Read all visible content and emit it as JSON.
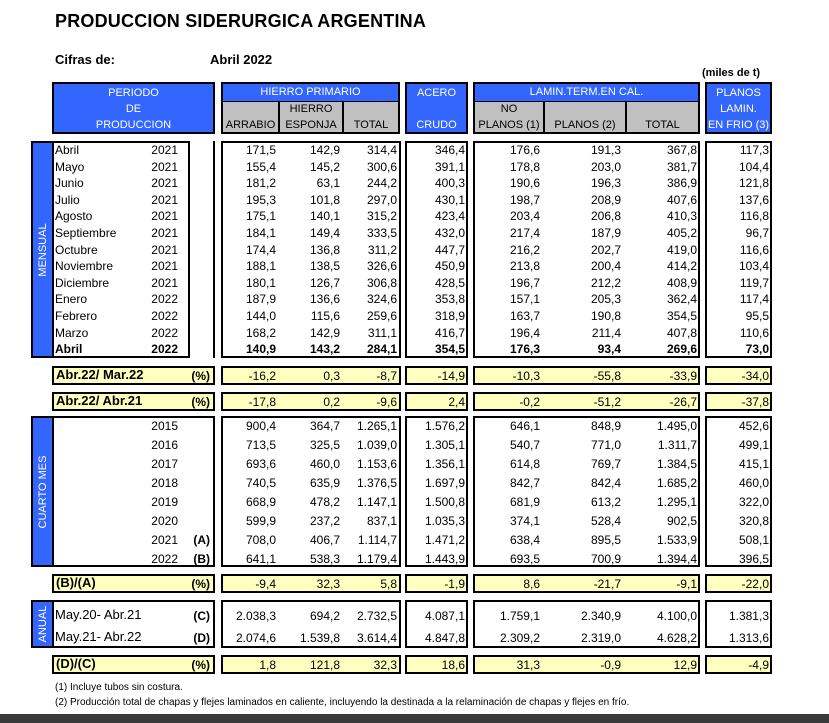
{
  "header": {
    "title": "PRODUCCION SIDERURGICA ARGENTINA",
    "cifras_label": "Cifras de:",
    "cifras_value": "Abril 2022",
    "units": "(miles de t)"
  },
  "columns": {
    "periodo": [
      "PERIODO",
      "DE",
      "PRODUCCION"
    ],
    "hierro_primario": "HIERRO PRIMARIO",
    "arrabio": "ARRABIO",
    "hierro_esponja": [
      "HIERRO",
      "ESPONJA"
    ],
    "hierro_total": "TOTAL",
    "acero": [
      "ACERO",
      "CRUDO"
    ],
    "lamin": "LAMIN.TERM.EN CAL.",
    "no_planos": [
      "NO",
      "PLANOS (1)"
    ],
    "planos": "PLANOS (2)",
    "lamin_total": "TOTAL",
    "planos_frio": [
      "PLANOS",
      "LAMIN.",
      "EN FRIO (3)"
    ]
  },
  "mensual": {
    "side_label": "MENSUAL",
    "rows": [
      {
        "month": "Abril",
        "year": "2021",
        "values": [
          "171,5",
          "142,9",
          "314,4",
          "346,4",
          "176,6",
          "191,3",
          "367,8",
          "117,3"
        ]
      },
      {
        "month": "Mayo",
        "year": "2021",
        "values": [
          "155,4",
          "145,2",
          "300,6",
          "391,1",
          "178,8",
          "203,0",
          "381,7",
          "104,4"
        ]
      },
      {
        "month": "Junio",
        "year": "2021",
        "values": [
          "181,2",
          "63,1",
          "244,2",
          "400,3",
          "190,6",
          "196,3",
          "386,9",
          "121,8"
        ]
      },
      {
        "month": "Julio",
        "year": "2021",
        "values": [
          "195,3",
          "101,8",
          "297,0",
          "430,1",
          "198,7",
          "208,9",
          "407,6",
          "137,6"
        ]
      },
      {
        "month": "Agosto",
        "year": "2021",
        "values": [
          "175,1",
          "140,1",
          "315,2",
          "423,4",
          "203,4",
          "206,8",
          "410,3",
          "116,8"
        ]
      },
      {
        "month": "Septiembre",
        "year": "2021",
        "values": [
          "184,1",
          "149,4",
          "333,5",
          "432,0",
          "217,4",
          "187,9",
          "405,2",
          "96,7"
        ]
      },
      {
        "month": "Octubre",
        "year": "2021",
        "values": [
          "174,4",
          "136,8",
          "311,2",
          "447,7",
          "216,2",
          "202,7",
          "419,0",
          "116,6"
        ]
      },
      {
        "month": "Noviembre",
        "year": "2021",
        "values": [
          "188,1",
          "138,5",
          "326,6",
          "450,9",
          "213,8",
          "200,4",
          "414,2",
          "103,4"
        ]
      },
      {
        "month": "Diciembre",
        "year": "2021",
        "values": [
          "180,1",
          "126,7",
          "306,8",
          "428,5",
          "196,7",
          "212,2",
          "408,9",
          "119,7"
        ]
      },
      {
        "month": "Enero",
        "year": "2022",
        "values": [
          "187,9",
          "136,6",
          "324,6",
          "353,8",
          "157,1",
          "205,3",
          "362,4",
          "117,4"
        ]
      },
      {
        "month": "Febrero",
        "year": "2022",
        "values": [
          "144,0",
          "115,6",
          "259,6",
          "318,9",
          "163,7",
          "190,8",
          "354,5",
          "95,5"
        ]
      },
      {
        "month": "Marzo",
        "year": "2022",
        "values": [
          "168,2",
          "142,9",
          "311,1",
          "416,7",
          "196,4",
          "211,4",
          "407,8",
          "110,6"
        ]
      },
      {
        "month": "Abril",
        "year": "2022",
        "bold": true,
        "values": [
          "140,9",
          "143,2",
          "284,1",
          "354,5",
          "176,3",
          "93,4",
          "269,6",
          "73,0"
        ]
      }
    ]
  },
  "ratio_mar": {
    "label": "Abr.22/ Mar.22",
    "unit": "(%)",
    "values": [
      "-16,2",
      "0,3",
      "-8,7",
      "-14,9",
      "-10,3",
      "-55,8",
      "-33,9",
      "-34,0"
    ]
  },
  "ratio_abr": {
    "label": "Abr.22/ Abr.21",
    "unit": "(%)",
    "values": [
      "-17,8",
      "0,2",
      "-9,6",
      "2,4",
      "-0,2",
      "-51,2",
      "-26,7",
      "-37,8"
    ]
  },
  "cuarto_mes": {
    "side_label": "CUARTO MES",
    "rows": [
      {
        "year": "2015",
        "marker": "",
        "values": [
          "900,4",
          "364,7",
          "1.265,1",
          "1.576,2",
          "646,1",
          "848,9",
          "1.495,0",
          "452,6"
        ]
      },
      {
        "year": "2016",
        "marker": "",
        "values": [
          "713,5",
          "325,5",
          "1.039,0",
          "1.305,1",
          "540,7",
          "771,0",
          "1.311,7",
          "499,1"
        ]
      },
      {
        "year": "2017",
        "marker": "",
        "values": [
          "693,6",
          "460,0",
          "1.153,6",
          "1.356,1",
          "614,8",
          "769,7",
          "1.384,5",
          "415,1"
        ]
      },
      {
        "year": "2018",
        "marker": "",
        "values": [
          "740,5",
          "635,9",
          "1.376,5",
          "1.697,9",
          "842,7",
          "842,4",
          "1.685,2",
          "460,0"
        ]
      },
      {
        "year": "2019",
        "marker": "",
        "values": [
          "668,9",
          "478,2",
          "1.147,1",
          "1.500,8",
          "681,9",
          "613,2",
          "1.295,1",
          "322,0"
        ]
      },
      {
        "year": "2020",
        "marker": "",
        "values": [
          "599,9",
          "237,2",
          "837,1",
          "1.035,3",
          "374,1",
          "528,4",
          "902,5",
          "320,8"
        ]
      },
      {
        "year": "2021",
        "marker": "(A)",
        "values": [
          "708,0",
          "406,7",
          "1.114,7",
          "1.471,2",
          "638,4",
          "895,5",
          "1.533,9",
          "508,1"
        ]
      },
      {
        "year": "2022",
        "marker": "(B)",
        "values": [
          "641,1",
          "538,3",
          "1.179,4",
          "1.443,9",
          "693,5",
          "700,9",
          "1.394,4",
          "396,5"
        ]
      }
    ]
  },
  "ratio_ba": {
    "label": "(B)/(A)",
    "unit": "(%)",
    "values": [
      "-9,4",
      "32,3",
      "5,8",
      "-1,9",
      "8,6",
      "-21,7",
      "-9,1",
      "-22,0"
    ]
  },
  "anual": {
    "side_label": "ANUAL",
    "rows": [
      {
        "period": "May.20- Abr.21",
        "marker": "(C)",
        "values": [
          "2.038,3",
          "694,2",
          "2.732,5",
          "4.087,1",
          "1.759,1",
          "2.340,9",
          "4.100,0",
          "1.381,3"
        ]
      },
      {
        "period": "May.21- Abr.22",
        "marker": "(D)",
        "values": [
          "2.074,6",
          "1.539,8",
          "3.614,4",
          "4.847,8",
          "2.309,2",
          "2.319,0",
          "4.628,2",
          "1.313,6"
        ]
      }
    ]
  },
  "ratio_dc": {
    "label": "(D)/(C)",
    "unit": "(%)",
    "values": [
      "1,8",
      "121,8",
      "32,3",
      "18,6",
      "31,3",
      "-0,9",
      "12,9",
      "-4,9"
    ]
  },
  "footnotes": [
    "(1) Incluye tubos sin costura.",
    "(2) Producción total de chapas y flejes laminados en caliente, incluyendo la destinada a la relaminación de chapas y flejes en frío."
  ]
}
